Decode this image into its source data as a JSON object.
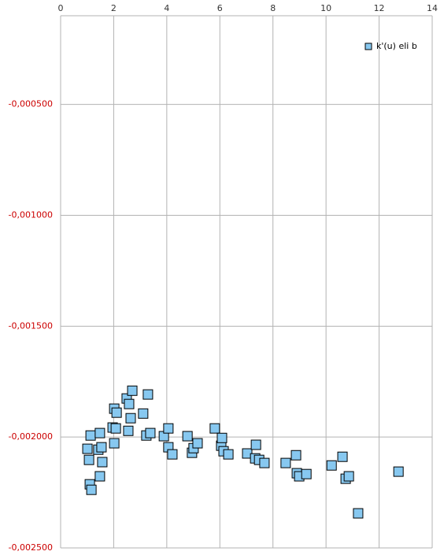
{
  "chart_data": {
    "type": "scatter",
    "series": [
      {
        "name": "k'(u) eli b",
        "color": "#87c8f0",
        "x": [
          1.01,
          1.13,
          1.07,
          1.1,
          1.16,
          1.42,
          1.48,
          1.54,
          1.48,
          1.57,
          1.96,
          2.02,
          2.08,
          2.02,
          2.11,
          2.49,
          2.55,
          2.58,
          2.64,
          2.7,
          3.11,
          3.23,
          3.29,
          3.38,
          3.89,
          4.06,
          4.06,
          4.21,
          4.78,
          4.95,
          5.01,
          5.16,
          5.81,
          6.05,
          6.08,
          6.14,
          6.32,
          7.03,
          7.33,
          7.36,
          7.48,
          7.68,
          8.48,
          8.87,
          8.9,
          8.99,
          9.26,
          10.21,
          10.62,
          10.74,
          10.86,
          11.21,
          12.73
        ],
        "values": [
          -0.002053,
          -0.001993,
          -0.002103,
          -0.002213,
          -0.002238,
          -0.002057,
          -0.001982,
          -0.002046,
          -0.002177,
          -0.002113,
          -0.001957,
          -0.001872,
          -0.001961,
          -0.002028,
          -0.00189,
          -0.001826,
          -0.001972,
          -0.001851,
          -0.001915,
          -0.001791,
          -0.001894,
          -0.001993,
          -0.001808,
          -0.001982,
          -0.001996,
          -0.001961,
          -0.002046,
          -0.002078,
          -0.001996,
          -0.002071,
          -0.00205,
          -0.002028,
          -0.001961,
          -0.002039,
          -0.002004,
          -0.002064,
          -0.002078,
          -0.002074,
          -0.002096,
          -0.002035,
          -0.002103,
          -0.002117,
          -0.002117,
          -0.002082,
          -0.002163,
          -0.002177,
          -0.002167,
          -0.002128,
          -0.002089,
          -0.002188,
          -0.002177,
          -0.002344,
          -0.002156
        ]
      }
    ],
    "xlim": [
      0,
      14
    ],
    "xticks": [
      0,
      2,
      4,
      6,
      8,
      10,
      12,
      14
    ],
    "ylim": [
      -0.0025,
      -0.0001
    ],
    "yticks": [
      {
        "value": -0.0005,
        "label": "-0,000500"
      },
      {
        "value": -0.001,
        "label": "-0,001000"
      },
      {
        "value": -0.0015,
        "label": "-0,001500"
      },
      {
        "value": -0.002,
        "label": "-0,002000"
      },
      {
        "value": -0.0025,
        "label": "-0,002500"
      }
    ],
    "grid": true,
    "legend": "top-right"
  }
}
